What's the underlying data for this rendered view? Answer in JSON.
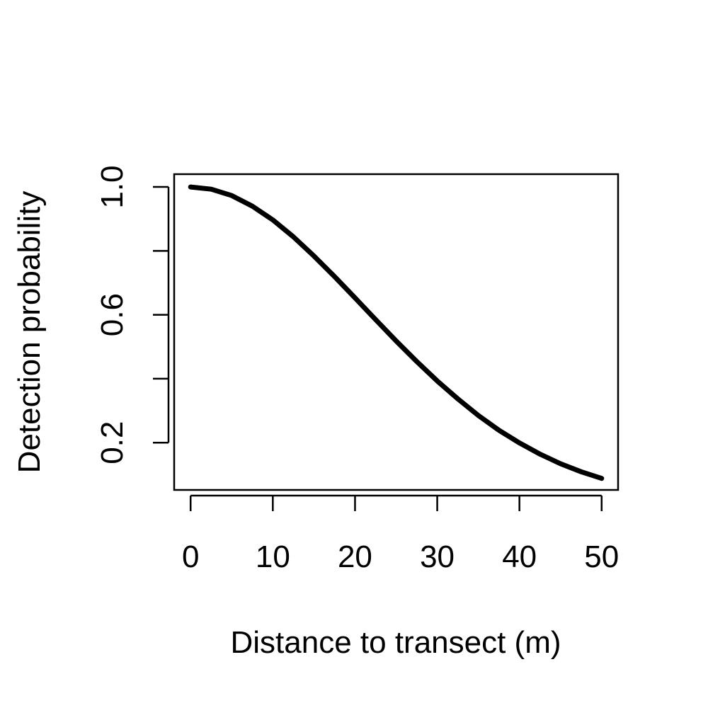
{
  "chart_data": {
    "type": "line",
    "title": "",
    "xlabel": "Distance to transect (m)",
    "ylabel": "Detection probability",
    "xlim": [
      -2,
      52
    ],
    "ylim": [
      0.052,
      1.04
    ],
    "x_ticks": [
      0,
      10,
      20,
      30,
      40,
      50
    ],
    "x_tick_labels": [
      "0",
      "10",
      "20",
      "30",
      "40",
      "50"
    ],
    "y_ticks": [
      0.2,
      0.4,
      0.6,
      0.8,
      1.0
    ],
    "y_tick_labels": [
      "0.2",
      "",
      "0.6",
      "",
      "1.0"
    ],
    "grid": false,
    "legend": "none",
    "line_color": "#000000",
    "series": [
      {
        "x": [
          0,
          2.5,
          5,
          7.5,
          10,
          12.5,
          15,
          17.5,
          20,
          22.5,
          25,
          27.5,
          30,
          32.5,
          35,
          37.5,
          40,
          42.5,
          45,
          47.5,
          50
        ],
        "values": [
          1.0,
          0.993,
          0.973,
          0.94,
          0.897,
          0.844,
          0.784,
          0.72,
          0.653,
          0.585,
          0.518,
          0.454,
          0.393,
          0.337,
          0.285,
          0.239,
          0.199,
          0.164,
          0.134,
          0.109,
          0.088
        ]
      }
    ]
  }
}
